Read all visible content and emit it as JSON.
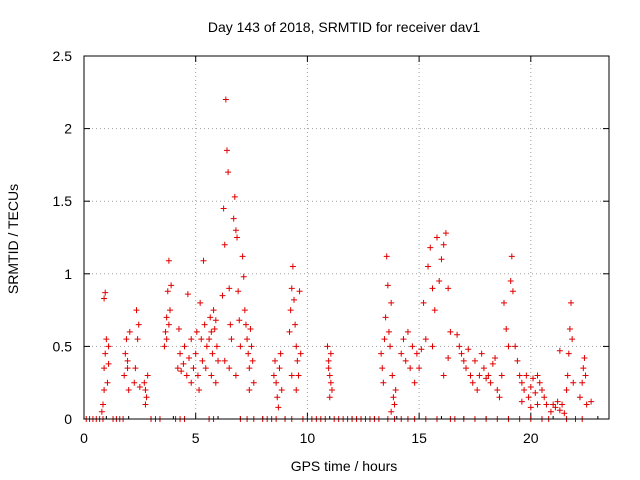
{
  "chart_data": {
    "type": "scatter",
    "title": "Day 143 of 2018, SRMTID for receiver dav1",
    "xlabel": "GPS time / hours",
    "ylabel": "SRMTID / TECUs",
    "xlim": [
      0,
      23.5
    ],
    "ylim": [
      0,
      2.5
    ],
    "xticks": [
      0,
      5,
      10,
      15,
      20
    ],
    "xtick_labels": [
      "0",
      "5",
      "10",
      "15",
      "20"
    ],
    "yticks": [
      0,
      0.5,
      1,
      1.5,
      2,
      2.5
    ],
    "ytick_labels": [
      "0",
      "0.5",
      "1",
      "1.5",
      "2",
      "2.5"
    ],
    "grid": true,
    "marker": "+",
    "color": "#e00000",
    "series": [
      {
        "name": "SRMTID",
        "points": [
          [
            0.1,
            0
          ],
          [
            0.25,
            0
          ],
          [
            0.4,
            0
          ],
          [
            0.55,
            0
          ],
          [
            0.7,
            0
          ],
          [
            0.85,
            0
          ],
          [
            0.8,
            0.05
          ],
          [
            0.85,
            0.1
          ],
          [
            0.9,
            0.2
          ],
          [
            0.9,
            0.35
          ],
          [
            0.95,
            0.45
          ],
          [
            1.0,
            0.55
          ],
          [
            0.9,
            0.83
          ],
          [
            0.95,
            0.87
          ],
          [
            1.05,
            0.25
          ],
          [
            1.1,
            0.5
          ],
          [
            1.1,
            0.38
          ],
          [
            1.3,
            0
          ],
          [
            1.45,
            0
          ],
          [
            1.6,
            0
          ],
          [
            1.75,
            0
          ],
          [
            1.8,
            0.3
          ],
          [
            1.85,
            0.45
          ],
          [
            1.9,
            0.55
          ],
          [
            1.95,
            0.35
          ],
          [
            2.0,
            0.2
          ],
          [
            2.05,
            0.6
          ],
          [
            1.95,
            0.4
          ],
          [
            2.25,
            0.25
          ],
          [
            2.3,
            0.35
          ],
          [
            2.4,
            0.55
          ],
          [
            2.35,
            0.75
          ],
          [
            2.45,
            0.65
          ],
          [
            2.5,
            0.22
          ],
          [
            2.7,
            0.25
          ],
          [
            2.75,
            0.2
          ],
          [
            2.8,
            0.15
          ],
          [
            2.85,
            0.3
          ],
          [
            2.75,
            0.1
          ],
          [
            3.0,
            0
          ],
          [
            3.2,
            0
          ],
          [
            3.4,
            0
          ],
          [
            3.6,
            0.5
          ],
          [
            3.65,
            0.6
          ],
          [
            3.7,
            0.7
          ],
          [
            3.75,
            0.88
          ],
          [
            3.8,
            1.09
          ],
          [
            3.85,
            0.75
          ],
          [
            3.9,
            0.92
          ],
          [
            3.7,
            0.55
          ],
          [
            3.8,
            0.65
          ],
          [
            4.1,
            0
          ],
          [
            4.3,
            0
          ],
          [
            4.5,
            0
          ],
          [
            4.2,
            0.35
          ],
          [
            4.3,
            0.45
          ],
          [
            4.35,
            0.33
          ],
          [
            4.25,
            0.62
          ],
          [
            4.45,
            0.38
          ],
          [
            4.5,
            0.5
          ],
          [
            4.6,
            0.3
          ],
          [
            4.7,
            0.42
          ],
          [
            4.8,
            0.55
          ],
          [
            4.9,
            0.35
          ],
          [
            4.65,
            0.86
          ],
          [
            4.8,
            0.25
          ],
          [
            5.0,
            0.45
          ],
          [
            5.05,
            0.6
          ],
          [
            5.1,
            0.3
          ],
          [
            5.15,
            0.2
          ],
          [
            5.2,
            0.8
          ],
          [
            5.25,
            0.55
          ],
          [
            5.3,
            0.4
          ],
          [
            5.35,
            1.09
          ],
          [
            5.4,
            0.65
          ],
          [
            5.45,
            0.35
          ],
          [
            5.5,
            0.5
          ],
          [
            5.6,
            0.55
          ],
          [
            5.65,
            0.7
          ],
          [
            5.7,
            0.6
          ],
          [
            5.75,
            0.45
          ],
          [
            5.8,
            0.75
          ],
          [
            5.85,
            0.62
          ],
          [
            5.9,
            0.68
          ],
          [
            5.95,
            0.5
          ],
          [
            6.0,
            0.4
          ],
          [
            5.7,
            0.3
          ],
          [
            5.9,
            0.25
          ],
          [
            5.6,
            0
          ],
          [
            5.8,
            0
          ],
          [
            6.2,
            0.85
          ],
          [
            6.25,
            1.45
          ],
          [
            6.3,
            1.2
          ],
          [
            6.35,
            2.2
          ],
          [
            6.4,
            1.85
          ],
          [
            6.45,
            1.7
          ],
          [
            6.5,
            0.9
          ],
          [
            6.55,
            0.65
          ],
          [
            6.6,
            0.55
          ],
          [
            6.3,
            0.4
          ],
          [
            6.5,
            0.35
          ],
          [
            6.7,
            1.38
          ],
          [
            6.75,
            1.53
          ],
          [
            6.8,
            1.3
          ],
          [
            6.85,
            1.25
          ],
          [
            6.9,
            0.88
          ],
          [
            6.95,
            0.68
          ],
          [
            7.0,
            0.5
          ],
          [
            6.8,
            0.3
          ],
          [
            7.1,
            1.12
          ],
          [
            7.15,
            0.98
          ],
          [
            7.2,
            0.75
          ],
          [
            7.25,
            0.65
          ],
          [
            7.3,
            0.55
          ],
          [
            7.35,
            0.45
          ],
          [
            7.4,
            0.35
          ],
          [
            7.45,
            0.62
          ],
          [
            7.5,
            0.5
          ],
          [
            7.55,
            0.4
          ],
          [
            7.6,
            0.25
          ],
          [
            7.4,
            0.2
          ],
          [
            7.0,
            0
          ],
          [
            7.3,
            0
          ],
          [
            7.6,
            0
          ],
          [
            8.0,
            0
          ],
          [
            8.2,
            0
          ],
          [
            8.4,
            0
          ],
          [
            8.6,
            0
          ],
          [
            8.5,
            0.3
          ],
          [
            8.55,
            0.4
          ],
          [
            8.6,
            0.25
          ],
          [
            8.65,
            0.15
          ],
          [
            8.7,
            0.08
          ],
          [
            8.75,
            0.35
          ],
          [
            8.8,
            0.45
          ],
          [
            8.85,
            0.2
          ],
          [
            9.2,
            0.6
          ],
          [
            9.25,
            0.75
          ],
          [
            9.3,
            0.9
          ],
          [
            9.35,
            1.05
          ],
          [
            9.4,
            0.82
          ],
          [
            9.45,
            0.65
          ],
          [
            9.5,
            0.5
          ],
          [
            9.55,
            0.4
          ],
          [
            9.6,
            0.3
          ],
          [
            9.65,
            0.88
          ],
          [
            9.7,
            0.45
          ],
          [
            9.3,
            0.3
          ],
          [
            9.5,
            0.2
          ],
          [
            9.0,
            0
          ],
          [
            9.3,
            0
          ],
          [
            9.8,
            0
          ],
          [
            10.0,
            0
          ],
          [
            10.2,
            0
          ],
          [
            10.4,
            0
          ],
          [
            10.6,
            0
          ],
          [
            10.8,
            0
          ],
          [
            10.9,
            0.5
          ],
          [
            10.95,
            0.4
          ],
          [
            11.0,
            0.3
          ],
          [
            11.05,
            0.25
          ],
          [
            11.1,
            0.2
          ],
          [
            11.0,
            0.15
          ],
          [
            10.95,
            0.35
          ],
          [
            11.05,
            0.45
          ],
          [
            11.2,
            0
          ],
          [
            11.4,
            0
          ],
          [
            11.6,
            0
          ],
          [
            11.8,
            0
          ],
          [
            12.0,
            0
          ],
          [
            12.2,
            0
          ],
          [
            12.4,
            0
          ],
          [
            12.6,
            0
          ],
          [
            12.8,
            0
          ],
          [
            13.0,
            0
          ],
          [
            13.2,
            0
          ],
          [
            13.3,
            0.45
          ],
          [
            13.35,
            0.35
          ],
          [
            13.4,
            0.25
          ],
          [
            13.45,
            0.55
          ],
          [
            13.5,
            0.7
          ],
          [
            13.55,
            1.12
          ],
          [
            13.6,
            0.92
          ],
          [
            13.65,
            0.6
          ],
          [
            13.7,
            0.5
          ],
          [
            13.75,
            0.8
          ],
          [
            13.8,
            0.3
          ],
          [
            13.85,
            0.15
          ],
          [
            13.9,
            0.1
          ],
          [
            13.95,
            0.2
          ],
          [
            13.75,
            0.05
          ],
          [
            13.6,
            0
          ],
          [
            13.9,
            0
          ],
          [
            14.2,
            0.45
          ],
          [
            14.3,
            0.55
          ],
          [
            14.4,
            0.4
          ],
          [
            14.5,
            0.6
          ],
          [
            14.6,
            0.35
          ],
          [
            14.7,
            0.5
          ],
          [
            14.8,
            0.25
          ],
          [
            14.9,
            0.45
          ],
          [
            14.2,
            0
          ],
          [
            14.5,
            0
          ],
          [
            14.8,
            0
          ],
          [
            15.0,
            0.35
          ],
          [
            15.1,
            0.48
          ],
          [
            15.2,
            0.8
          ],
          [
            15.3,
            0.55
          ],
          [
            15.4,
            1.05
          ],
          [
            15.5,
            1.18
          ],
          [
            15.6,
            0.9
          ],
          [
            15.7,
            0.75
          ],
          [
            15.8,
            1.25
          ],
          [
            15.9,
            0.95
          ],
          [
            16.0,
            1.1
          ],
          [
            16.1,
            1.2
          ],
          [
            16.2,
            1.28
          ],
          [
            16.3,
            0.9
          ],
          [
            16.4,
            0.6
          ],
          [
            16.3,
            0.42
          ],
          [
            16.1,
            0.3
          ],
          [
            15.6,
            0.5
          ],
          [
            15.3,
            0
          ],
          [
            15.8,
            0
          ],
          [
            16.4,
            0
          ],
          [
            16.6,
            0
          ],
          [
            16.7,
            0.58
          ],
          [
            16.8,
            0.5
          ],
          [
            16.9,
            0.45
          ],
          [
            17.0,
            0.4
          ],
          [
            17.1,
            0.35
          ],
          [
            17.2,
            0.48
          ],
          [
            17.3,
            0.3
          ],
          [
            17.4,
            0.25
          ],
          [
            17.5,
            0.4
          ],
          [
            17.6,
            0.2
          ],
          [
            17.7,
            0.3
          ],
          [
            17.8,
            0.45
          ],
          [
            17.9,
            0.35
          ],
          [
            18.0,
            0.28
          ],
          [
            18.1,
            0.3
          ],
          [
            18.2,
            0.25
          ],
          [
            18.3,
            0.38
          ],
          [
            18.4,
            0.42
          ],
          [
            18.5,
            0.2
          ],
          [
            18.6,
            0.15
          ],
          [
            18.7,
            0.3
          ],
          [
            18.8,
            0.8
          ],
          [
            18.9,
            0.62
          ],
          [
            19.0,
            0.5
          ],
          [
            19.1,
            0.95
          ],
          [
            19.15,
            1.12
          ],
          [
            19.2,
            0.88
          ],
          [
            19.3,
            0.5
          ],
          [
            19.4,
            0.4
          ],
          [
            17.0,
            0
          ],
          [
            17.5,
            0
          ],
          [
            18.0,
            0
          ],
          [
            18.5,
            0
          ],
          [
            19.0,
            0
          ],
          [
            19.5,
            0
          ],
          [
            19.5,
            0.3
          ],
          [
            19.6,
            0.25
          ],
          [
            19.7,
            0.2
          ],
          [
            19.8,
            0.3
          ],
          [
            19.9,
            0.15
          ],
          [
            20.0,
            0.22
          ],
          [
            20.1,
            0.28
          ],
          [
            20.2,
            0.18
          ],
          [
            20.3,
            0.1
          ],
          [
            20.4,
            0.25
          ],
          [
            20.5,
            0.2
          ],
          [
            20.6,
            0.15
          ],
          [
            20.7,
            0.1
          ],
          [
            19.6,
            0.12
          ],
          [
            20.0,
            0.08
          ],
          [
            20.3,
            0.3
          ],
          [
            20.0,
            0
          ],
          [
            20.5,
            0
          ],
          [
            20.8,
            0
          ],
          [
            20.9,
            0.05
          ],
          [
            21.0,
            0.1
          ],
          [
            21.1,
            0.08
          ],
          [
            21.2,
            0.12
          ],
          [
            21.3,
            0.06
          ],
          [
            21.4,
            0.1
          ],
          [
            21.5,
            0.04
          ],
          [
            21.3,
            0.47
          ],
          [
            21.6,
            0.2
          ],
          [
            21.65,
            0.3
          ],
          [
            21.7,
            0.45
          ],
          [
            21.75,
            0.62
          ],
          [
            21.8,
            0.8
          ],
          [
            21.85,
            0.55
          ],
          [
            21.9,
            0.25
          ],
          [
            21.6,
            0
          ],
          [
            22.0,
            0
          ],
          [
            22.3,
            0
          ],
          [
            22.2,
            0.15
          ],
          [
            22.3,
            0.25
          ],
          [
            22.35,
            0.35
          ],
          [
            22.4,
            0.42
          ],
          [
            22.45,
            0.3
          ],
          [
            22.5,
            0.1
          ],
          [
            22.7,
            0.12
          ]
        ]
      }
    ]
  }
}
